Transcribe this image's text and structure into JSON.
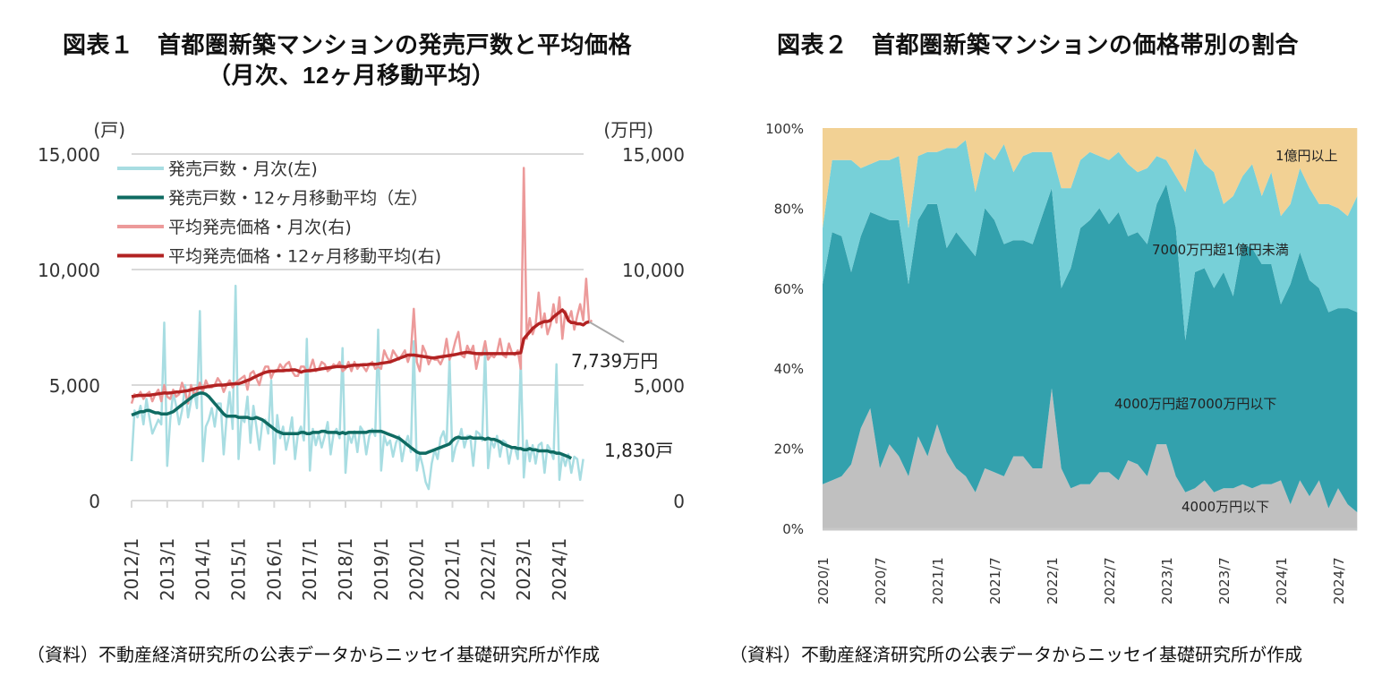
{
  "figure1": {
    "title_line1": "図表１　首都圏新築マンションの発売戸数と平均価格",
    "title_line2": "（月次、12ヶ月移動平均）",
    "source": "（資料）不動産経済研究所の公表データからニッセイ基礎研究所が作成"
  },
  "figure2": {
    "title": "図表２　首都圏新築マンションの価格帯別の割合",
    "source": "（資料）不動産経済研究所の公表データからニッセイ基礎研究所が作成"
  },
  "chart_data": [
    {
      "type": "line",
      "title": "首都圏新築マンションの発売戸数と平均価格（月次、12ヶ月移動平均）",
      "left_axis": {
        "unit_label": "(戸)",
        "ylim": [
          0,
          15000
        ],
        "ticks": [
          "0",
          "5,000",
          "10,000",
          "15,000"
        ]
      },
      "right_axis": {
        "unit_label": "(万円)",
        "ylim": [
          0,
          15000
        ],
        "ticks": [
          "0",
          "5,000",
          "10,000",
          "15,000"
        ]
      },
      "x_start": "2012/1",
      "x_end": "2024/9",
      "x_ticks": [
        "2012/1",
        "2013/1",
        "2014/1",
        "2015/1",
        "2016/1",
        "2017/1",
        "2018/1",
        "2019/1",
        "2020/1",
        "2021/1",
        "2022/1",
        "2023/1",
        "2024/1"
      ],
      "grid": true,
      "legend": "top-left",
      "annotations": [
        {
          "text": "7,739万円",
          "series": "平均発売価格・12ヶ月移動平均(右)"
        },
        {
          "text": "1,830戸",
          "series": "発売戸数・12ヶ月移動平均（左）"
        }
      ],
      "series": [
        {
          "name": "発売戸数・月次(左)",
          "axis": "left",
          "color": "#a8dde2",
          "values": [
            1700,
            3900,
            3600,
            4100,
            3300,
            4400,
            3600,
            2900,
            3200,
            3500,
            3300,
            7700,
            1500,
            3500,
            4700,
            4100,
            3300,
            3900,
            5000,
            3600,
            4300,
            4800,
            4000,
            8200,
            1700,
            3200,
            3500,
            4000,
            3200,
            4200,
            4200,
            2000,
            3600,
            4700,
            3100,
            9300,
            1800,
            3600,
            3400,
            4500,
            2500,
            4100,
            3200,
            2200,
            3400,
            3500,
            2900,
            5200,
            1600,
            3700,
            2700,
            3200,
            2200,
            2800,
            3600,
            1800,
            2900,
            3200,
            2600,
            7000,
            1300,
            3100,
            2400,
            2900,
            2300,
            2800,
            3400,
            2000,
            2900,
            3100,
            2700,
            6600,
            1200,
            2900,
            2500,
            3000,
            2100,
            3200,
            3000,
            2000,
            2800,
            3100,
            2800,
            7400,
            1300,
            2800,
            2400,
            2600,
            1900,
            2500,
            2800,
            1700,
            2400,
            2800,
            2100,
            6900,
            1300,
            2000,
            1500,
            800,
            500,
            1600,
            2200,
            1800,
            2700,
            3000,
            2400,
            6200,
            1700,
            2300,
            2600,
            3100,
            2300,
            2800,
            2800,
            1500,
            3000,
            2900,
            2600,
            6600,
            1400,
            2600,
            2300,
            2800,
            1900,
            2600,
            2500,
            1600,
            2300,
            2300,
            1800,
            6100,
            1000,
            2600,
            1700,
            2400,
            1600,
            2400,
            2500,
            1200,
            2400,
            2200,
            1800,
            5900,
            900,
            2000,
            1500,
            2000,
            1200,
            1900,
            1800,
            900,
            1800
          ]
        },
        {
          "name": "発売戸数・12ヶ月移動平均（左）",
          "axis": "left",
          "color": "#0f6b62",
          "values": [
            3700,
            3750,
            3800,
            3850,
            3850,
            3900,
            3900,
            3850,
            3800,
            3800,
            3750,
            3750,
            3750,
            3800,
            3850,
            3950,
            4050,
            4150,
            4250,
            4350,
            4450,
            4550,
            4600,
            4650,
            4650,
            4600,
            4500,
            4350,
            4200,
            4050,
            3900,
            3750,
            3650,
            3650,
            3650,
            3650,
            3600,
            3600,
            3600,
            3600,
            3550,
            3550,
            3600,
            3550,
            3500,
            3400,
            3300,
            3200,
            3100,
            3000,
            2950,
            2900,
            2900,
            2900,
            2900,
            2900,
            2900,
            2950,
            2950,
            2900,
            2900,
            2950,
            2950,
            2950,
            3000,
            3000,
            2950,
            2950,
            2950,
            2950,
            2900,
            2950,
            2900,
            2950,
            2950,
            2950,
            2950,
            2950,
            2950,
            2950,
            3000,
            3000,
            3000,
            3000,
            3000,
            2950,
            2900,
            2850,
            2800,
            2750,
            2700,
            2600,
            2500,
            2400,
            2300,
            2200,
            2100,
            2050,
            2050,
            2050,
            2100,
            2150,
            2200,
            2250,
            2300,
            2350,
            2400,
            2450,
            2600,
            2700,
            2750,
            2700,
            2700,
            2700,
            2750,
            2700,
            2700,
            2700,
            2700,
            2650,
            2700,
            2650,
            2650,
            2600,
            2550,
            2450,
            2400,
            2350,
            2300,
            2300,
            2250,
            2250,
            2200,
            2200,
            2250,
            2200,
            2200,
            2150,
            2150,
            2150,
            2150,
            2100,
            2100,
            2050,
            2050,
            2000,
            1950,
            1900,
            1830
          ]
        },
        {
          "name": "平均発売価格・月次(右)",
          "axis": "right",
          "color": "#ec9a9a",
          "values": [
            4200,
            4600,
            4500,
            4700,
            4400,
            4600,
            4700,
            4300,
            4600,
            4800,
            4300,
            5000,
            4500,
            4400,
            4800,
            4500,
            4600,
            5100,
            4700,
            4200,
            5000,
            4600,
            4700,
            5100,
            4700,
            5200,
            4900,
            4900,
            5000,
            5300,
            5100,
            4700,
            5000,
            5200,
            4900,
            5100,
            5200,
            5300,
            5400,
            4800,
            5500,
            5600,
            5300,
            5000,
            5500,
            5800,
            5800,
            5300,
            5600,
            5600,
            5900,
            5700,
            5900,
            6000,
            5600,
            5400,
            5400,
            5800,
            5800,
            5600,
            5700,
            6100,
            5600,
            5700,
            6000,
            5900,
            5600,
            5700,
            5900,
            5800,
            6000,
            5600,
            5700,
            6000,
            5600,
            6000,
            5700,
            5900,
            5800,
            5600,
            5900,
            6000,
            5700,
            5800,
            5700,
            6500,
            6200,
            6000,
            6500,
            6300,
            6100,
            6300,
            6500,
            6000,
            6400,
            8300,
            6000,
            5600,
            6700,
            6400,
            5900,
            6200,
            6100,
            6100,
            5900,
            6200,
            7000,
            6100,
            6400,
            6900,
            7300,
            6300,
            6200,
            6700,
            6400,
            6700,
            5700,
            6300,
            6300,
            6900,
            6100,
            6300,
            6200,
            6400,
            7000,
            6300,
            6200,
            6800,
            6400,
            6300,
            6500,
            5700,
            14400,
            7000,
            7900,
            7200,
            7600,
            9000,
            7500,
            8100,
            7200,
            7600,
            8500,
            7700,
            8800,
            7000,
            8200,
            7800,
            8200,
            7400,
            8000,
            8500,
            7800,
            9600,
            7700,
            7800
          ]
        },
        {
          "name": "平均発売価格・12ヶ月移動平均(右)",
          "axis": "right",
          "color": "#b22222",
          "values": [
            4500,
            4520,
            4550,
            4550,
            4560,
            4560,
            4560,
            4580,
            4600,
            4620,
            4640,
            4660,
            4650,
            4660,
            4680,
            4700,
            4700,
            4720,
            4740,
            4760,
            4800,
            4830,
            4860,
            4880,
            4900,
            4920,
            4940,
            4960,
            4980,
            5000,
            5000,
            5000,
            5020,
            5040,
            5050,
            5060,
            5060,
            5100,
            5150,
            5200,
            5250,
            5320,
            5380,
            5440,
            5500,
            5550,
            5580,
            5600,
            5600,
            5620,
            5620,
            5620,
            5640,
            5640,
            5660,
            5660,
            5620,
            5560,
            5600,
            5620,
            5620,
            5640,
            5660,
            5680,
            5700,
            5720,
            5740,
            5760,
            5780,
            5800,
            5800,
            5800,
            5780,
            5820,
            5850,
            5860,
            5860,
            5870,
            5880,
            5880,
            5900,
            5900,
            5900,
            5920,
            5940,
            5960,
            5980,
            6000,
            6050,
            6100,
            6150,
            6200,
            6250,
            6300,
            6300,
            6300,
            6280,
            6260,
            6240,
            6220,
            6200,
            6180,
            6180,
            6200,
            6220,
            6240,
            6260,
            6280,
            6300,
            6320,
            6350,
            6380,
            6400,
            6420,
            6400,
            6380,
            6360,
            6360,
            6360,
            6360,
            6360,
            6360,
            6360,
            6360,
            6360,
            6360,
            6360,
            6360,
            6360,
            6360,
            6380,
            6400,
            7000,
            7150,
            7300,
            7450,
            7550,
            7650,
            7700,
            7750,
            7750,
            7800,
            7950,
            8050,
            8150,
            8250,
            8100,
            7800,
            7700,
            7700,
            7650,
            7650,
            7600,
            7700,
            7739
          ]
        }
      ]
    },
    {
      "type": "area",
      "stacked": true,
      "percent": true,
      "title": "首都圏新築マンションの価格帯別の割合",
      "ylim": [
        0,
        100
      ],
      "y_ticks": [
        "0%",
        "20%",
        "40%",
        "60%",
        "80%",
        "100%"
      ],
      "x_start": "2020/1",
      "x_end": "2024/9",
      "x_ticks": [
        "2020/1",
        "2020/7",
        "2021/1",
        "2021/7",
        "2022/1",
        "2022/7",
        "2023/1",
        "2023/7",
        "2024/1",
        "2024/7"
      ],
      "grid": false,
      "series": [
        {
          "name": "4000万円以下",
          "color": "#c0c0c0",
          "values": [
            11,
            12,
            13,
            16,
            25,
            30,
            15,
            21,
            18,
            13,
            23,
            18,
            26,
            19,
            15,
            13,
            9,
            15,
            14,
            13,
            18,
            18,
            15,
            15,
            35,
            15,
            10,
            11,
            11,
            14,
            14,
            12,
            17,
            16,
            13,
            21,
            21,
            13,
            9,
            10,
            12,
            9,
            10,
            10,
            11,
            10,
            11,
            11,
            12,
            6,
            12,
            8,
            12,
            5,
            10,
            6,
            4
          ]
        },
        {
          "name": "4000万円超7000万円以下",
          "color": "#33a1ad",
          "values": [
            50,
            62,
            60,
            48,
            48,
            49,
            63,
            56,
            59,
            48,
            54,
            63,
            55,
            51,
            59,
            58,
            59,
            65,
            63,
            58,
            54,
            54,
            56,
            63,
            50,
            45,
            55,
            64,
            66,
            66,
            62,
            67,
            56,
            58,
            58,
            60,
            65,
            62,
            38,
            54,
            53,
            51,
            54,
            48,
            60,
            60,
            55,
            55,
            44,
            55,
            57,
            54,
            48,
            49,
            45,
            49,
            50
          ]
        },
        {
          "name": "7000万円超1億円未満",
          "color": "#77d0d8",
          "values": [
            14,
            18,
            19,
            28,
            17,
            12,
            14,
            15,
            16,
            14,
            16,
            13,
            13,
            25,
            21,
            26,
            16,
            14,
            15,
            25,
            17,
            21,
            23,
            16,
            9,
            25,
            20,
            17,
            17,
            13,
            16,
            15,
            18,
            15,
            19,
            12,
            6,
            13,
            37,
            31,
            26,
            29,
            17,
            25,
            17,
            21,
            17,
            23,
            22,
            20,
            21,
            23,
            21,
            27,
            25,
            23,
            29
          ]
        },
        {
          "name": "1億円以上",
          "color": "#f2d194",
          "values": [
            25,
            8,
            8,
            8,
            10,
            9,
            8,
            8,
            7,
            25,
            7,
            6,
            6,
            5,
            5,
            3,
            16,
            6,
            8,
            4,
            11,
            7,
            6,
            6,
            6,
            15,
            15,
            8,
            6,
            7,
            8,
            6,
            9,
            11,
            10,
            7,
            8,
            12,
            16,
            5,
            9,
            11,
            19,
            17,
            12,
            9,
            17,
            11,
            22,
            19,
            10,
            15,
            19,
            19,
            20,
            22,
            17
          ]
        }
      ]
    }
  ]
}
